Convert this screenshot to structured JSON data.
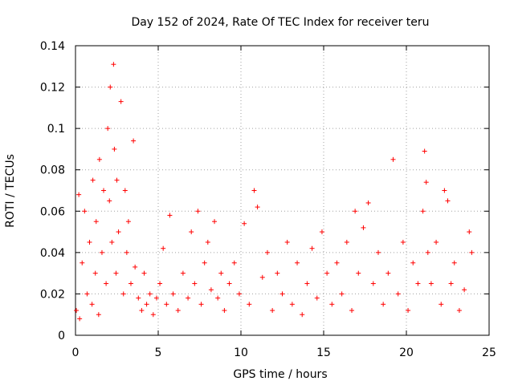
{
  "chart_data": {
    "type": "scatter",
    "title": "Day 152 of 2024, Rate Of TEC Index for receiver teru",
    "xlabel": "GPS time / hours",
    "ylabel": "ROTI / TECUs",
    "xlim": [
      0,
      25
    ],
    "ylim": [
      0,
      0.14
    ],
    "xticks": [
      "0",
      "5",
      "10",
      "15",
      "20",
      "25"
    ],
    "yticks": [
      "0",
      "0.02",
      "0.04",
      "0.06",
      "0.08",
      "0.1",
      "0.12",
      "0.14"
    ],
    "grid": true,
    "marker": "+",
    "series": [
      {
        "name": "",
        "color": "#ff0000",
        "x": [
          0.05,
          0.2,
          0.25,
          0.4,
          0.55,
          0.7,
          0.85,
          1.0,
          1.05,
          1.2,
          1.25,
          1.4,
          1.45,
          1.6,
          1.7,
          1.85,
          1.95,
          2.05,
          2.1,
          2.2,
          2.3,
          2.35,
          2.45,
          2.5,
          2.6,
          2.75,
          2.9,
          3.0,
          3.1,
          3.2,
          3.35,
          3.5,
          3.6,
          3.8,
          4.0,
          4.15,
          4.3,
          4.5,
          4.7,
          4.9,
          5.1,
          5.3,
          5.5,
          5.7,
          5.9,
          6.2,
          6.5,
          6.8,
          7.0,
          7.2,
          7.4,
          7.6,
          7.8,
          8.0,
          8.2,
          8.4,
          8.6,
          8.8,
          9.0,
          9.3,
          9.6,
          9.9,
          10.2,
          10.5,
          10.8,
          11.0,
          11.3,
          11.6,
          11.9,
          12.2,
          12.5,
          12.8,
          13.1,
          13.4,
          13.7,
          14.0,
          14.3,
          14.6,
          14.9,
          15.2,
          15.5,
          15.8,
          16.1,
          16.4,
          16.7,
          16.9,
          17.1,
          17.4,
          17.7,
          18.0,
          18.3,
          18.6,
          18.9,
          19.2,
          19.5,
          19.8,
          20.1,
          20.4,
          20.7,
          21.0,
          21.1,
          21.2,
          21.3,
          21.5,
          21.8,
          22.1,
          22.3,
          22.5,
          22.7,
          22.9,
          23.2,
          23.5,
          23.8,
          23.95
        ],
        "y": [
          0.012,
          0.068,
          0.008,
          0.035,
          0.06,
          0.02,
          0.045,
          0.015,
          0.075,
          0.03,
          0.055,
          0.01,
          0.085,
          0.04,
          0.07,
          0.025,
          0.1,
          0.065,
          0.12,
          0.045,
          0.131,
          0.09,
          0.03,
          0.075,
          0.05,
          0.113,
          0.02,
          0.07,
          0.04,
          0.055,
          0.025,
          0.094,
          0.033,
          0.018,
          0.012,
          0.03,
          0.015,
          0.02,
          0.01,
          0.018,
          0.025,
          0.042,
          0.015,
          0.058,
          0.02,
          0.012,
          0.03,
          0.018,
          0.05,
          0.025,
          0.06,
          0.015,
          0.035,
          0.045,
          0.022,
          0.055,
          0.018,
          0.03,
          0.012,
          0.025,
          0.035,
          0.02,
          0.054,
          0.015,
          0.07,
          0.062,
          0.028,
          0.04,
          0.012,
          0.03,
          0.02,
          0.045,
          0.015,
          0.035,
          0.01,
          0.025,
          0.042,
          0.018,
          0.05,
          0.03,
          0.015,
          0.035,
          0.02,
          0.045,
          0.012,
          0.06,
          0.03,
          0.052,
          0.064,
          0.025,
          0.04,
          0.015,
          0.03,
          0.085,
          0.02,
          0.045,
          0.012,
          0.035,
          0.025,
          0.06,
          0.089,
          0.074,
          0.04,
          0.025,
          0.045,
          0.015,
          0.07,
          0.065,
          0.025,
          0.035,
          0.012,
          0.022,
          0.05,
          0.04
        ]
      }
    ]
  }
}
